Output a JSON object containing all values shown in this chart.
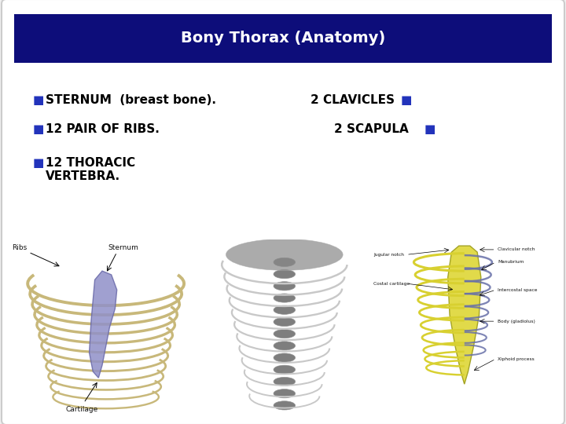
{
  "title": "Bony Thorax (Anatomy)",
  "title_bg_color": "#0d0d7a",
  "title_text_color": "#ffffff",
  "slide_bg_color": "#f0f0f0",
  "text_area_bg": "#ffffff",
  "slide_border_color": "#aaaaaa",
  "left_bullets": [
    "STERNUM  (breast bone).",
    "12 PAIR OF RIBS.",
    "12 THORACIC\nVERTEBRA."
  ],
  "right_bullets": [
    "2 CLAVICLES",
    "2 SCAPULA"
  ],
  "bullet_color": "#2233bb",
  "text_color": "#000000",
  "text_fontsize": 11,
  "title_fontsize": 14
}
